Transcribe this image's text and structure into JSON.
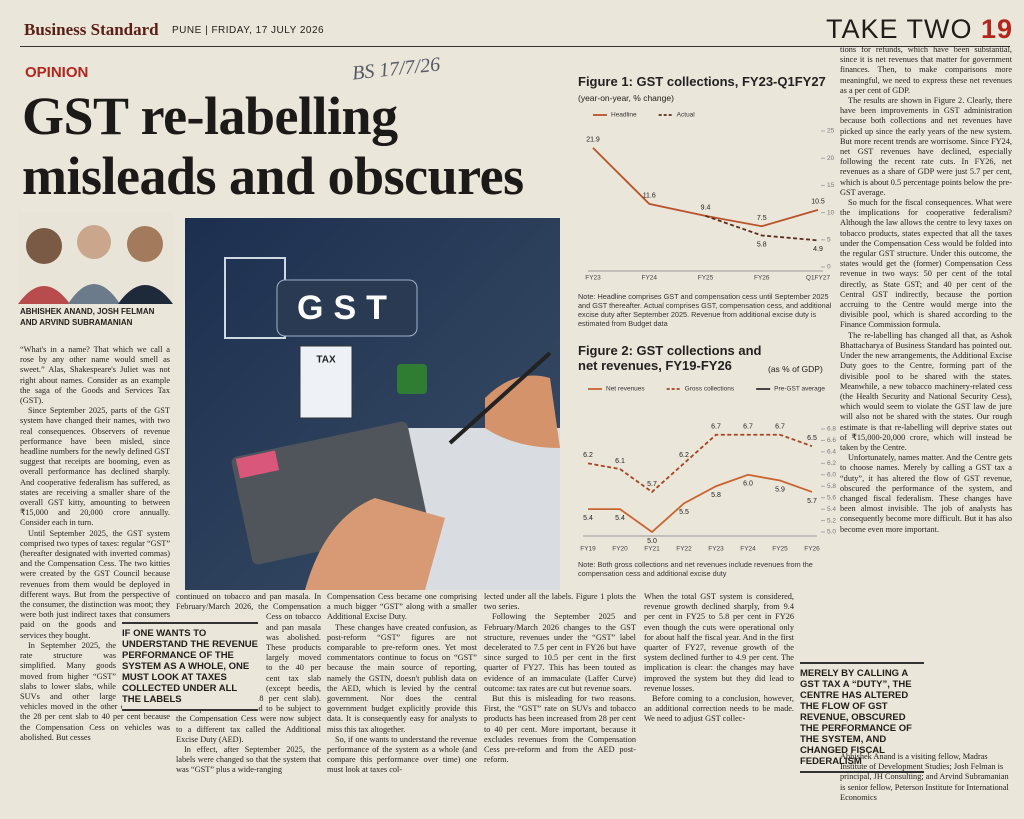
{
  "header": {
    "masthead": "Business Standard",
    "edition": "PUNE",
    "date": "FRIDAY, 17 JULY 2026",
    "section": "TAKE TWO",
    "page": 19
  },
  "handwriting": "BS 17/7/26",
  "article": {
    "kicker": "OPINION",
    "headline": [
      "GST re-labelling",
      "misleads and obscures"
    ],
    "authors": "ABHISHEK ANAND, JOSH FELMAN AND ARVIND SUBRAMANIAN",
    "image_texts": [
      "GST",
      "TAX"
    ],
    "columns": [
      [
        "“What's in a name? That which we call a rose by any other name would smell as sweet.” Alas, Shakespeare's Juliet was not right about names. Consider as an example the saga of the Goods and Services Tax (GST).",
        "Since September 2025, parts of the GST system have changed their names, with two real consequences. Observers of revenue performance have been misled, since headline numbers for the newly defined GST suggest that receipts are booming, even as overall performance has declined sharply. And cooperative federalism has suffered, as states are receiving a smaller share of the overall GST kitty, amounting to between ₹15,000 and 20,000 crore annually. Consider each in turn.",
        "Until September 2025, the GST system comprised two types of taxes: regular “GST” (hereafter designated with inverted commas) and the Compensation Cess. The two kitties were created by the GST Council because revenues from them would be deployed in different ways. But from the perspective of the consumer, the distinction was moot; they were both just indirect taxes that consumers paid on the goods and services they bought.",
        "In September 2025, the rate structure was simplified. Many goods moved from higher “GST” slabs to lower slabs, while SUVs and other large vehicles moved in the other direction from the 28 per cent slab to 40 per cent because the Compensation Cess on vehicles was abolished. But cesses"
      ],
      [
        "continued on tobacco and pan masala. In February/March 2026, the Compensation Cess on tobacco and pan masala was abolished. These products largely moved to the 40 per cent tax slab (except beedis, which moved to the 18 per cent slab). These products that used to be subject to the Compensation Cess were now subject to a different tax called the Additional Excise Duty (AED).",
        "In effect, after September 2025, the labels were changed so that the system that was “GST” plus a wide-ranging"
      ],
      [
        "Compensation Cess became one comprising a much bigger “GST” along with a smaller Additional Excise Duty.",
        "These changes have created confusion, as post-reform “GST” figures are not comparable to pre-reform ones. Yet most commentators continue to focus on “GST” because the main source of reporting, namely the GSTN, doesn't publish data on the AED, which is levied by the central government. Nor does the central government budget explicitly provide this data. It is consequently easy for analysts to miss this tax altogether.",
        "So, if one wants to understand the revenue performance of the system as a whole (and compare this performance over time) one must look at taxes col-"
      ],
      [
        "lected under all the labels. Figure 1 plots the two series.",
        "Following the September 2025 and February/March 2026 changes to the GST structure, revenues under the “GST” label decelerated to 7.5 per cent in FY26 but have since surged to 10.5 per cent in the first quarter of FY27. This has been touted as evidence of an immaculate (Laffer Curve) outcome: tax rates are cut but revenue soars.",
        "But this is misleading for two reasons. First, the “GST” rate on SUVs and tobacco products has been increased from 28 per cent to 40 per cent. More important, because it excludes revenues from the Compensation Cess pre-reform and from the AED post-reform."
      ],
      [
        "When the total GST system is considered, revenue growth declined sharply, from 9.4 per cent in FY25 to 5.8 per cent in FY26 even though the cuts were operational only for about half the fiscal year. And in the first quarter of FY27, revenue growth of the system declined further to 4.9 per cent. The implication is clear: the changes may have improved the system but they did lead to revenue losses.",
        "Before coming to a conclusion, however, an additional correction needs to be made. We need to adjust GST collec-"
      ],
      [
        "tions for refunds, which have been substantial, since it is net revenues that matter for government finances. Then, to make comparisons more meaningful, we need to express these net revenues as a per cent of GDP.",
        "The results are shown in Figure 2. Clearly, there have been improvements in GST administration because both collections and net revenues have picked up since the early years of the new system. But more recent trends are worrisome. Since FY24, net GST revenues have declined, especially following the recent rate cuts. In FY26, net revenues as a share of GDP were just 5.7 per cent, which is about 0.5 percentage points below the pre-GST average.",
        "So much for the fiscal consequences. What were the implications for cooperative federalism? Although the law allows the centre to levy taxes on tobacco products, states expected that all the taxes under the Compensation Cess would be folded into the regular GST structure. Under this outcome, the states would get the (former) Compensation Cess revenue in two ways: 50 per cent of the total directly, as State GST; and 40 per cent of the Central GST indirectly, because the portion accruing to the Centre would merge into the divisible pool, which is shared according to the Finance Commission formula.",
        "The re-labelling has changed all that, as Ashok Bhattacharya of Business Standard has pointed out. Under the new arrangements, the Additional Excise Duty goes to the Centre, forming part of the divisible pool to be shared with the states. Meanwhile, a new tobacco machinery-related cess (the Health Security and National Security Cess), which would seem to violate the GST law de jure will also not be shared with the states. Our rough estimate is that re-labelling will deprive states out of ₹15,000-20,000 crore, which will instead be taken by the Centre.",
        "Unfortunately, names matter. And the Centre gets to choose names. Merely by calling a GST tax a “duty”, it has altered the flow of GST revenue, obscured the performance of the system, and changed fiscal federalism. These changes have been almost invisible. The job of analysts has consequently become more difficult. But it has also become even more important."
      ]
    ],
    "pull_quotes": [
      "IF ONE WANTS TO UNDERSTAND THE REVENUE PERFORMANCE OF THE SYSTEM AS A WHOLE, ONE MUST LOOK AT TAXES COLLECTED UNDER ALL THE LABELS",
      "MERELY BY CALLING A GST TAX A “DUTY”, THE CENTRE HAS ALTERED THE FLOW OF GST REVENUE, OBSCURED THE PERFORMANCE OF THE SYSTEM, AND CHANGED FISCAL FEDERALISM"
    ],
    "bio": "Abhishek Anand is a visiting fellow, Madras Institute of Development Studies; Josh Felman is principal, JH Consulting; and Arvind Subramanian is senior fellow, Peterson Institute for International Economics"
  },
  "charts": [
    {
      "type": "line",
      "title": "Figure 1: GST collections, FY23-Q1FY27",
      "subtitle": "(year-on-year, % change)",
      "categories": [
        "FY23",
        "FY24",
        "FY25",
        "FY26",
        "Q1FY27"
      ],
      "series": [
        {
          "name": "Headline",
          "color": "#b8532b",
          "line_style": "solid",
          "values": [
            21.9,
            11.6,
            9.4,
            7.5,
            10.5
          ]
        },
        {
          "name": "Actual",
          "color": "#5a2e1c",
          "line_style": "dashed",
          "values": [
            null,
            null,
            9.4,
            5.8,
            4.9
          ],
          "value_labels": [
            null,
            null,
            null,
            "5.8",
            "4.9"
          ]
        }
      ],
      "ylim": [
        0,
        25
      ],
      "yticks": [
        0,
        5,
        10,
        15,
        20,
        25
      ],
      "grid": false,
      "note": "Note: Headline comprises GST and compensation cess until September 2025 and GST thereafter. Actual comprises GST, compensation cess, and additional excise duty after September 2025. Revenue from additional excise duty is estimated from Budget data"
    },
    {
      "type": "line",
      "title": "Figure 2: GST collections and net revenues, FY19-FY26",
      "subtitle": "(as % of GDP)",
      "categories": [
        "FY19",
        "FY20",
        "FY21",
        "FY22",
        "FY23",
        "FY24",
        "FY25",
        "FY26"
      ],
      "series": [
        {
          "name": "Net revenues",
          "color": "#c8642f",
          "line_style": "solid",
          "values": [
            5.4,
            5.4,
            5.0,
            5.5,
            5.8,
            6.0,
            5.9,
            5.7
          ],
          "value_labels": [
            "5.4",
            "5.4",
            "5.0",
            "5.5",
            "5.8",
            "6.0",
            "5.9",
            "5.7"
          ]
        },
        {
          "name": "Gross collections",
          "color": "#a8451f",
          "line_style": "dashed",
          "values": [
            6.2,
            6.1,
            5.7,
            6.2,
            6.7,
            6.7,
            6.7,
            6.5
          ]
        },
        {
          "name": "Pre-GST average",
          "color": "#333333",
          "line_style": "solid"
        }
      ],
      "ylim": [
        5.0,
        6.8
      ],
      "yticks": [
        {
          "value": 5.0,
          "label": "5.0"
        },
        5.2,
        5.4,
        5.6,
        5.8,
        {
          "value": 6.0,
          "label": "6.0"
        },
        6.2,
        6.4,
        6.6,
        6.8
      ],
      "grid": false,
      "note": "Note: Both gross collections and net revenues include revenues from the compensation cess and additional excise duty"
    }
  ]
}
